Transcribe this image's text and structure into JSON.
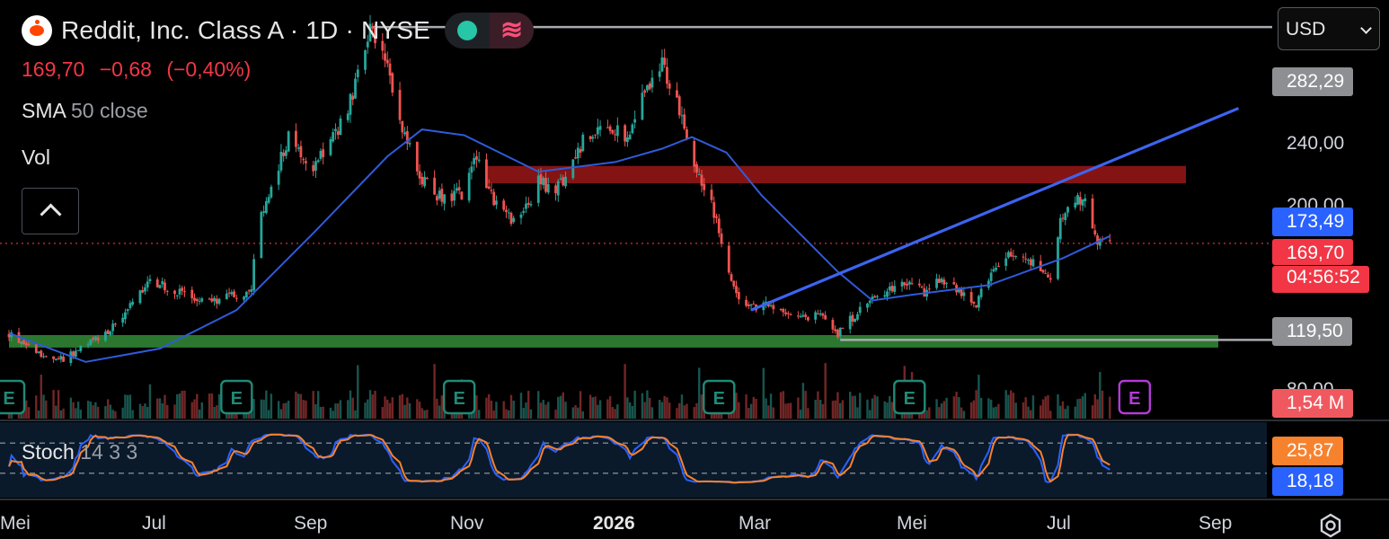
{
  "header": {
    "title": "Reddit, Inc. Class A · 1D · NYSE",
    "wave_glyph": "≋",
    "last": "169,70",
    "change": "−0,68",
    "change_pct": "(−0,40%)"
  },
  "indicators": {
    "sma_name": "SMA",
    "sma_params": "50 close",
    "vol_name": "Vol",
    "stoch_name": "Stoch",
    "stoch_params": "14 3 3"
  },
  "currency": {
    "selected": "USD"
  },
  "price_axis": {
    "labels": [
      "240,00",
      "200,00",
      "80,00"
    ],
    "tag_high": "282,29",
    "tag_sma": "173,49",
    "tag_last": "169,70",
    "tag_countdown": "04:56:52",
    "tag_low": "119,50",
    "tag_volume": "1,54 M",
    "tag_stoch_k": "25,87",
    "tag_stoch_d": "18,18"
  },
  "colors": {
    "up": "#26a69a",
    "down": "#ef5350",
    "sma": "#2f5bd8",
    "trendline": "#3d64f0",
    "stoch_k": "#2962ff",
    "stoch_d": "#f7822e",
    "resistance_zone": "#b71c1c",
    "support_zone": "#2e7d32"
  },
  "icons": [
    "reddit-logo",
    "live-dot-icon",
    "wave-icon",
    "chevron-up-icon",
    "chevron-down-icon",
    "earnings-icon",
    "settings-icon"
  ],
  "chart_data": {
    "type": "candlestick",
    "symbol": "Reddit, Inc. Class A",
    "interval": "1D",
    "exchange": "NYSE",
    "x_ticks": [
      "Mei",
      "Jul",
      "Sep",
      "Nov",
      "2026",
      "Mar",
      "Mei",
      "Jul",
      "Sep"
    ],
    "x_tick_dates": [
      "2025-05-01",
      "2025-07-01",
      "2025-09-01",
      "2025-11-01",
      "2026-01-01",
      "2026-03-01",
      "2026-05-01",
      "2026-07-01",
      "2026-09-01"
    ],
    "ylim": [
      86,
      287
    ],
    "yticks": [
      240,
      200,
      80
    ],
    "price_path": [
      [
        "2025-05-01",
        123
      ],
      [
        "2025-05-10",
        115
      ],
      [
        "2025-05-20",
        108
      ],
      [
        "2025-06-01",
        116
      ],
      [
        "2025-06-12",
        126
      ],
      [
        "2025-06-22",
        142
      ],
      [
        "2025-06-28",
        150
      ],
      [
        "2025-07-06",
        145
      ],
      [
        "2025-07-20",
        139
      ],
      [
        "2025-08-01",
        143
      ],
      [
        "2025-08-07",
        144
      ],
      [
        "2025-08-09",
        175
      ],
      [
        "2025-08-14",
        195
      ],
      [
        "2025-08-22",
        225
      ],
      [
        "2025-09-01",
        210
      ],
      [
        "2025-09-08",
        223
      ],
      [
        "2025-09-14",
        235
      ],
      [
        "2025-09-20",
        262
      ],
      [
        "2025-09-24",
        280
      ],
      [
        "2025-10-01",
        260
      ],
      [
        "2025-10-05",
        238
      ],
      [
        "2025-10-14",
        204
      ],
      [
        "2025-10-22",
        194
      ],
      [
        "2025-11-01",
        196
      ],
      [
        "2025-11-06",
        216
      ],
      [
        "2025-11-12",
        194
      ],
      [
        "2025-11-20",
        182
      ],
      [
        "2025-11-28",
        190
      ],
      [
        "2025-12-01",
        205
      ],
      [
        "2025-12-06",
        196
      ],
      [
        "2025-12-12",
        203
      ],
      [
        "2025-12-20",
        226
      ],
      [
        "2025-12-30",
        230
      ],
      [
        "2026-01-06",
        226
      ],
      [
        "2026-01-14",
        252
      ],
      [
        "2026-01-20",
        262
      ],
      [
        "2026-01-26",
        242
      ],
      [
        "2026-02-02",
        210
      ],
      [
        "2026-02-08",
        195
      ],
      [
        "2026-02-16",
        155
      ],
      [
        "2026-02-22",
        135
      ],
      [
        "2026-03-01",
        138
      ],
      [
        "2026-03-10",
        134
      ],
      [
        "2026-03-16",
        130
      ],
      [
        "2026-03-24",
        133
      ],
      [
        "2026-04-01",
        123
      ],
      [
        "2026-04-06",
        130
      ],
      [
        "2026-04-16",
        142
      ],
      [
        "2026-04-24",
        146
      ],
      [
        "2026-05-01",
        150
      ],
      [
        "2026-05-06",
        144
      ],
      [
        "2026-05-12",
        150
      ],
      [
        "2026-05-20",
        145
      ],
      [
        "2026-05-26",
        136
      ],
      [
        "2026-06-02",
        155
      ],
      [
        "2026-06-08",
        163
      ],
      [
        "2026-06-18",
        160
      ],
      [
        "2026-06-26",
        152
      ],
      [
        "2026-06-30",
        180
      ],
      [
        "2026-07-04",
        196
      ],
      [
        "2026-07-10",
        190
      ],
      [
        "2026-07-14",
        172
      ],
      [
        "2026-07-20",
        169.7
      ]
    ],
    "sma50": [
      [
        "2025-05-01",
        123
      ],
      [
        "2025-06-01",
        108
      ],
      [
        "2025-07-01",
        115
      ],
      [
        "2025-08-01",
        135
      ],
      [
        "2025-09-01",
        175
      ],
      [
        "2025-10-01",
        215
      ],
      [
        "2025-10-15",
        229
      ],
      [
        "2025-11-01",
        226
      ],
      [
        "2025-12-01",
        207
      ],
      [
        "2026-01-01",
        212
      ],
      [
        "2026-01-20",
        219
      ],
      [
        "2026-02-01",
        225
      ],
      [
        "2026-02-15",
        217
      ],
      [
        "2026-03-01",
        195
      ],
      [
        "2026-04-01",
        155
      ],
      [
        "2026-04-15",
        140
      ],
      [
        "2026-05-01",
        143
      ],
      [
        "2026-06-01",
        148
      ],
      [
        "2026-07-01",
        162
      ],
      [
        "2026-07-20",
        173.49
      ]
    ],
    "sma_last": 173.49,
    "last_price": 169.7,
    "annotations": {
      "high_line": {
        "value": 282.29,
        "from": "2025-09-25"
      },
      "low_line": {
        "value": 119.5,
        "from": "2026-04-02"
      },
      "resistance_zone": {
        "from": 201,
        "to": 210,
        "start": "2025-11-10"
      },
      "support_zone": {
        "from": 115.5,
        "to": 122,
        "start": "2025-05-01"
      },
      "trendline": [
        [
          "2026-02-25",
          135
        ],
        [
          "2026-09-10",
          240
        ]
      ]
    },
    "earnings_dates": [
      "2025-05-01",
      "2025-08-01",
      "2025-10-30",
      "2026-02-12",
      "2026-04-30",
      "2026-07-30"
    ],
    "volume_last": "1,54 M",
    "stochastic": {
      "params": [
        14,
        3,
        3
      ],
      "k_last": 25.87,
      "d_last": 18.18,
      "levels": [
        80,
        20
      ]
    }
  }
}
